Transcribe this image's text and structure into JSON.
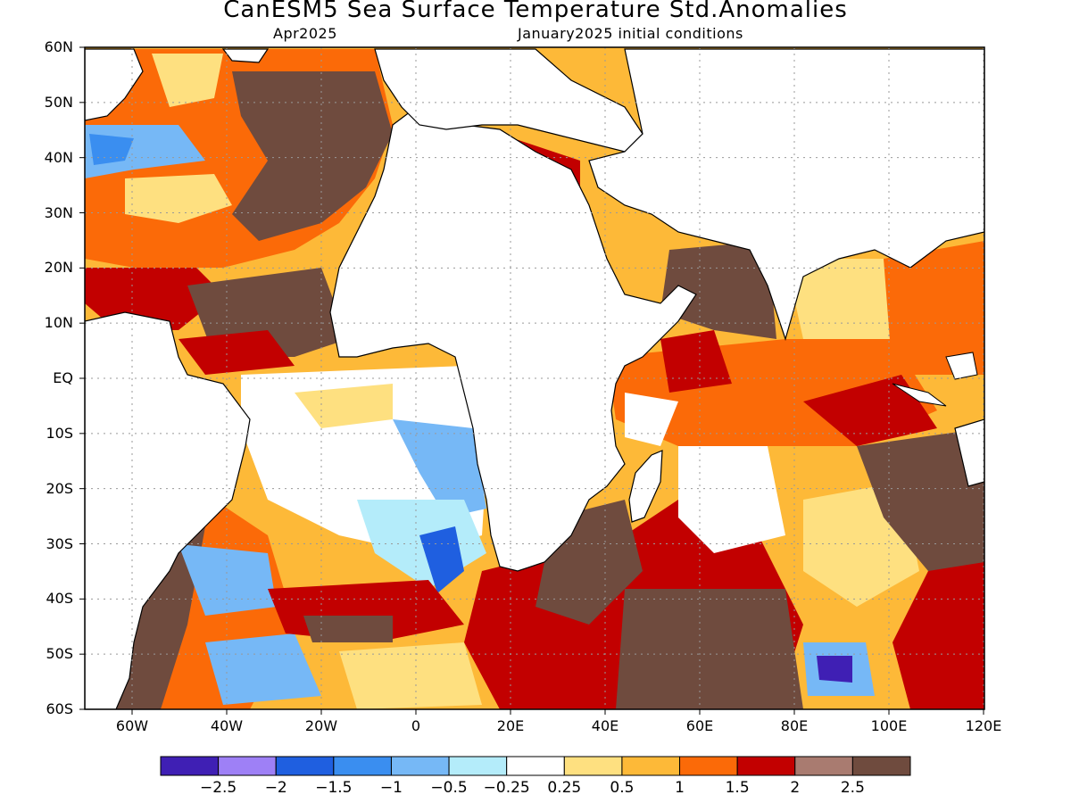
{
  "title": "CanESM5 Sea Surface Temperature Std.Anomalies",
  "subtitle_left": "Apr2025",
  "subtitle_right": "January2025 initial conditions",
  "lat_labels": [
    "60N",
    "50N",
    "40N",
    "30N",
    "20N",
    "10N",
    "EQ",
    "10S",
    "20S",
    "30S",
    "40S",
    "50S",
    "60S"
  ],
  "lon_labels": [
    "60W",
    "40W",
    "20W",
    "0",
    "20E",
    "40E",
    "60E",
    "80E",
    "100E",
    "120E"
  ],
  "colorbar": {
    "colors": [
      "#3f1fb4",
      "#9e80f6",
      "#1f5fe0",
      "#3a8ef0",
      "#76b8f6",
      "#b4ecfa",
      "#ffffff",
      "#fee080",
      "#fdb938",
      "#fb6a08",
      "#c20000",
      "#a97b70",
      "#6f4b3e"
    ],
    "tick_labels": [
      "-2.5",
      "-2",
      "-1.5",
      "-1",
      "-0.5",
      "-0.25",
      "0.25",
      "0.5",
      "1",
      "1.5",
      "2",
      "2.5"
    ]
  },
  "colors": {
    "land": "#ffffff",
    "coast": "#000000",
    "grid": "#999999"
  }
}
